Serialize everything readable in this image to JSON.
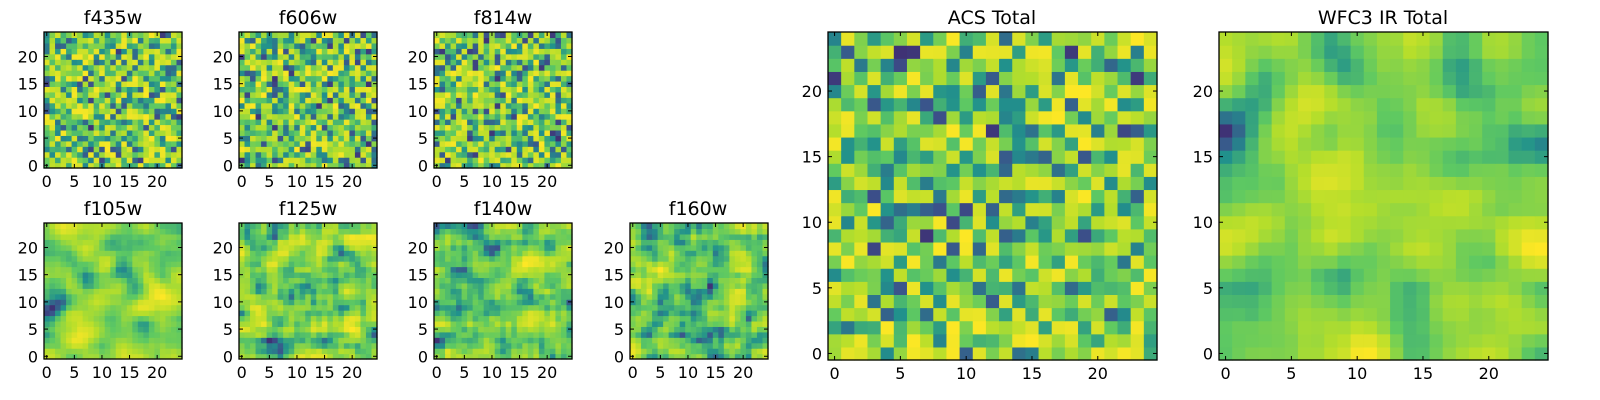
{
  "chart_data": [
    {
      "type": "heatmap",
      "title": "f435w",
      "size": 25,
      "seed": 435,
      "smooth": 0,
      "xticks": [
        0,
        5,
        10,
        15,
        20
      ],
      "yticks": [
        0,
        5,
        10,
        15,
        20
      ],
      "xlim": [
        0,
        24
      ],
      "ylim": [
        0,
        24
      ],
      "colormap": "viridis",
      "vmin": 0,
      "vmax": 1
    },
    {
      "type": "heatmap",
      "title": "f606w",
      "size": 25,
      "seed": 606,
      "smooth": 0,
      "xticks": [
        0,
        5,
        10,
        15,
        20
      ],
      "yticks": [
        0,
        5,
        10,
        15,
        20
      ],
      "xlim": [
        0,
        24
      ],
      "ylim": [
        0,
        24
      ],
      "colormap": "viridis",
      "vmin": 0,
      "vmax": 1
    },
    {
      "type": "heatmap",
      "title": "f814w",
      "size": 25,
      "seed": 814,
      "smooth": 0,
      "xticks": [
        0,
        5,
        10,
        15,
        20
      ],
      "yticks": [
        0,
        5,
        10,
        15,
        20
      ],
      "xlim": [
        0,
        24
      ],
      "ylim": [
        0,
        24
      ],
      "colormap": "viridis",
      "vmin": 0,
      "vmax": 1
    },
    {
      "type": "heatmap",
      "title": "f105w",
      "size": 25,
      "seed": 105,
      "smooth": 2,
      "xticks": [
        0,
        5,
        10,
        15,
        20
      ],
      "yticks": [
        0,
        5,
        10,
        15,
        20
      ],
      "xlim": [
        0,
        24
      ],
      "ylim": [
        0,
        24
      ],
      "colormap": "viridis",
      "vmin": 0,
      "vmax": 1
    },
    {
      "type": "heatmap",
      "title": "f125w",
      "size": 25,
      "seed": 125,
      "smooth": 1,
      "xticks": [
        0,
        5,
        10,
        15,
        20
      ],
      "yticks": [
        0,
        5,
        10,
        15,
        20
      ],
      "xlim": [
        0,
        24
      ],
      "ylim": [
        0,
        24
      ],
      "colormap": "viridis",
      "vmin": 0,
      "vmax": 1
    },
    {
      "type": "heatmap",
      "title": "f140w",
      "size": 25,
      "seed": 140,
      "smooth": 1,
      "xticks": [
        0,
        5,
        10,
        15,
        20
      ],
      "yticks": [
        0,
        5,
        10,
        15,
        20
      ],
      "xlim": [
        0,
        24
      ],
      "ylim": [
        0,
        24
      ],
      "colormap": "viridis",
      "vmin": 0,
      "vmax": 1
    },
    {
      "type": "heatmap",
      "title": "f160w",
      "size": 25,
      "seed": 160,
      "smooth": 1,
      "xticks": [
        0,
        5,
        10,
        15,
        20
      ],
      "yticks": [
        0,
        5,
        10,
        15,
        20
      ],
      "xlim": [
        0,
        24
      ],
      "ylim": [
        0,
        24
      ],
      "colormap": "viridis",
      "vmin": 0,
      "vmax": 1
    },
    {
      "type": "heatmap",
      "title": "ACS Total",
      "size": 25,
      "seed": 999,
      "smooth": 0,
      "xticks": [
        0,
        5,
        10,
        15,
        20
      ],
      "yticks": [
        0,
        5,
        10,
        15,
        20
      ],
      "xlim": [
        0,
        24
      ],
      "ylim": [
        0,
        24
      ],
      "colormap": "viridis",
      "vmin": 0,
      "vmax": 1
    },
    {
      "type": "heatmap",
      "title": "WFC3 IR Total",
      "size": 25,
      "seed": 333,
      "smooth": 2,
      "xticks": [
        0,
        5,
        10,
        15,
        20
      ],
      "yticks": [
        0,
        5,
        10,
        15,
        20
      ],
      "xlim": [
        0,
        24
      ],
      "ylim": [
        0,
        24
      ],
      "colormap": "viridis",
      "vmin": 0,
      "vmax": 1
    }
  ],
  "colors": {
    "viridis_stops": [
      "#440154",
      "#3b528b",
      "#21918c",
      "#5ec962",
      "#b5de2b",
      "#fde725"
    ],
    "axis": "#000000",
    "background": "#ffffff"
  }
}
